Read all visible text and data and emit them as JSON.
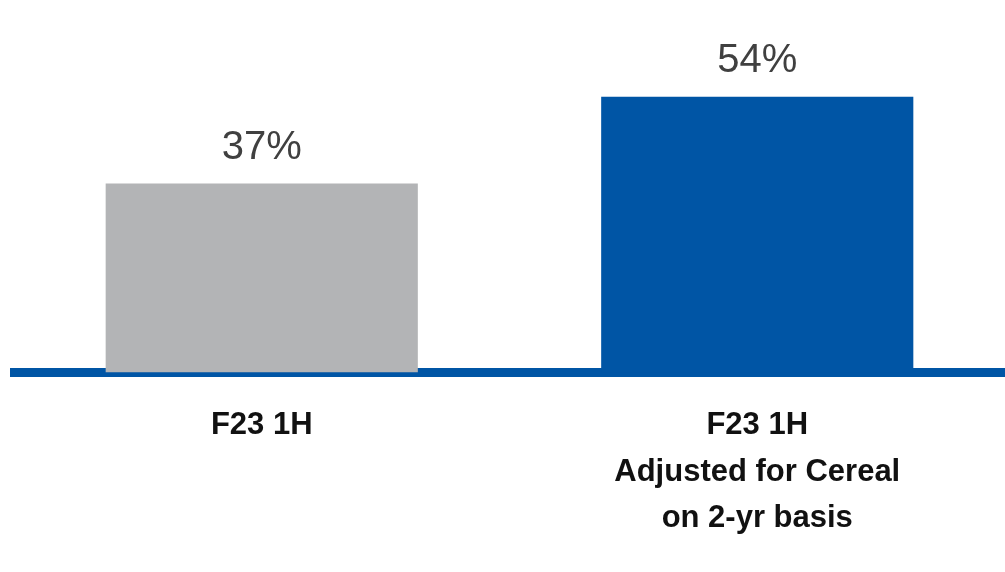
{
  "chart_data": {
    "type": "bar",
    "categories": [
      "F23 1H",
      "F23 1H\nAdjusted for Cereal\non 2-yr basis"
    ],
    "values": [
      37,
      54
    ],
    "colors": [
      "#b3b4b6",
      "#0055a5"
    ],
    "value_labels": [
      "37%",
      "54%"
    ],
    "tick_labels": "x",
    "grid": false,
    "legend": false
  }
}
